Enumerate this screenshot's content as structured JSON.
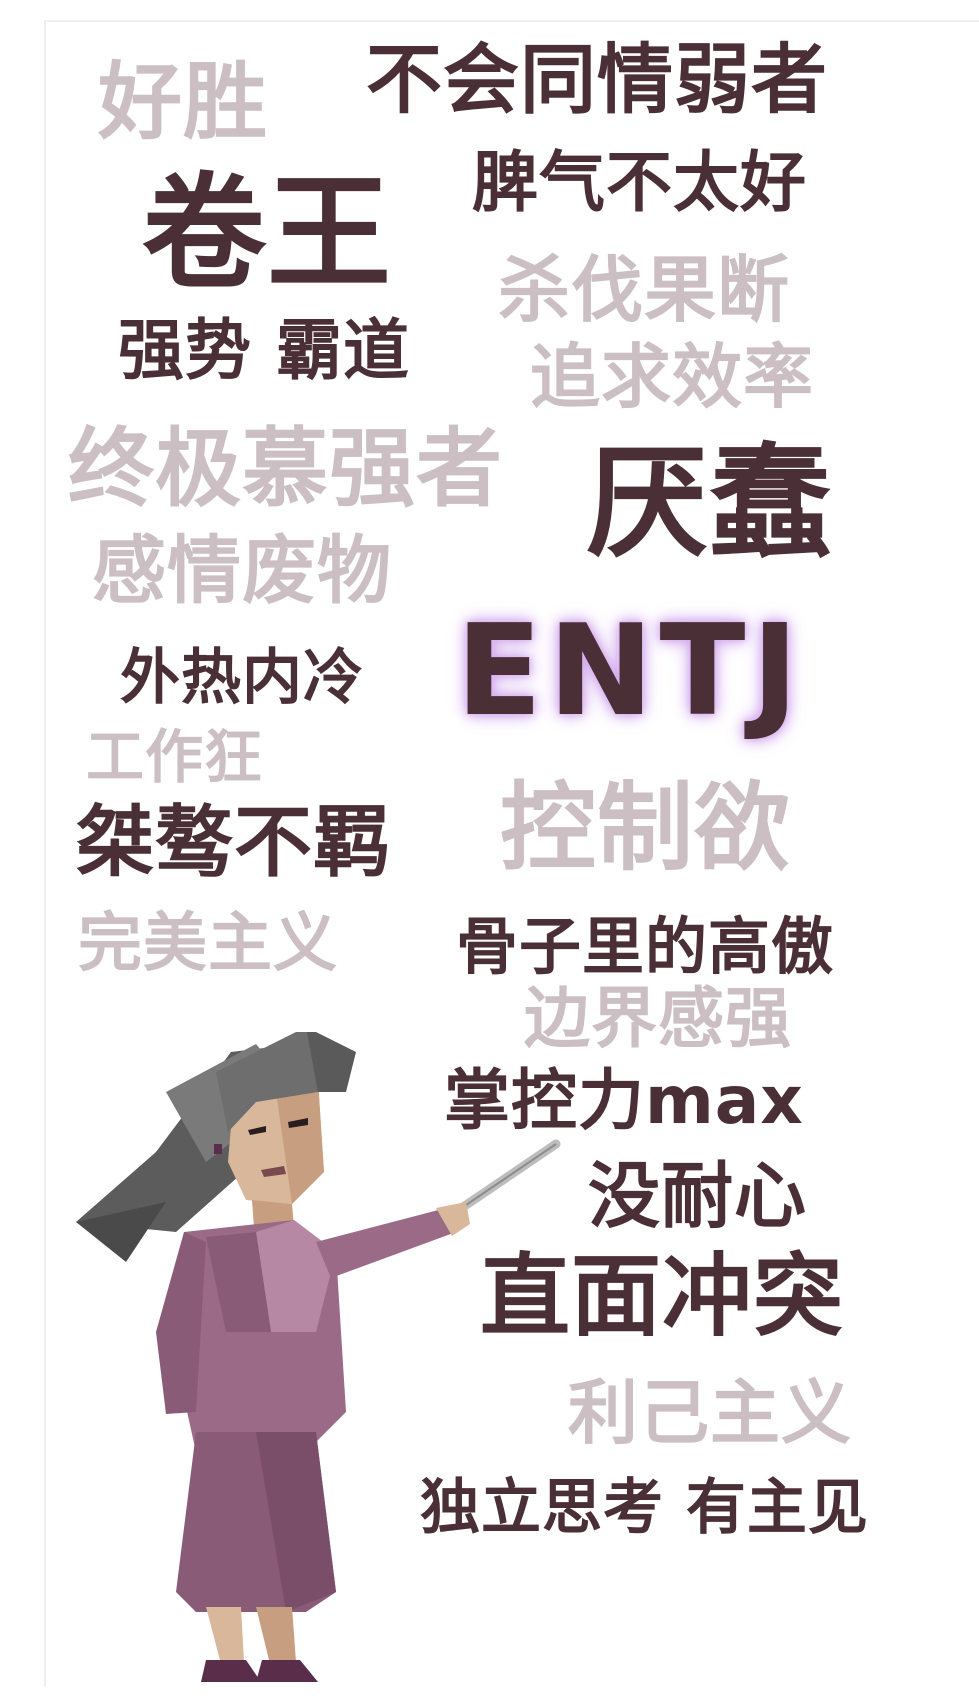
{
  "keywords": [
    {
      "id": "haosheng",
      "text": "好胜",
      "tone": "light"
    },
    {
      "id": "buhuitongqing",
      "text": "不会同情弱者",
      "tone": "dark"
    },
    {
      "id": "juanwang",
      "text": "卷王",
      "tone": "dark"
    },
    {
      "id": "piqi",
      "text": "脾气不太好",
      "tone": "dark"
    },
    {
      "id": "shafa",
      "text": "杀伐果断",
      "tone": "light"
    },
    {
      "id": "qiangshi",
      "text": "强势 霸道",
      "tone": "dark"
    },
    {
      "id": "xiaolv",
      "text": "追求效率",
      "tone": "light"
    },
    {
      "id": "mqiang",
      "text": "终极慕强者",
      "tone": "light"
    },
    {
      "id": "yanchun",
      "text": "厌蠢",
      "tone": "dark"
    },
    {
      "id": "ganqing",
      "text": "感情废物",
      "tone": "light"
    },
    {
      "id": "entj",
      "text": "ENTJ",
      "tone": "dark"
    },
    {
      "id": "waire",
      "text": "外热内冷",
      "tone": "dark"
    },
    {
      "id": "gongzuokuang",
      "text": "工作狂",
      "tone": "light"
    },
    {
      "id": "kongzhiyu",
      "text": "控制欲",
      "tone": "light"
    },
    {
      "id": "jieao",
      "text": "桀骜不羁",
      "tone": "dark"
    },
    {
      "id": "wanmei",
      "text": "完美主义",
      "tone": "light"
    },
    {
      "id": "gaoao",
      "text": "骨子里的高傲",
      "tone": "dark"
    },
    {
      "id": "bianjie",
      "text": "边界感强",
      "tone": "light"
    },
    {
      "id": "zhangkong",
      "text": "掌控力max",
      "tone": "dark"
    },
    {
      "id": "naixin",
      "text": "没耐心",
      "tone": "dark"
    },
    {
      "id": "chongtu",
      "text": "直面冲突",
      "tone": "dark"
    },
    {
      "id": "liji",
      "text": "利己主义",
      "tone": "light"
    },
    {
      "id": "duli",
      "text": "独立思考 有主见",
      "tone": "dark"
    }
  ],
  "colors": {
    "dark": "#4a2f36",
    "light": "#cbbfc4",
    "glow": "#c99ae8",
    "hair": "#6e6e6e",
    "skin": "#d9b79a",
    "dress": "#9a6a86"
  },
  "figure": {
    "icon": "pointing-woman-illustration"
  }
}
